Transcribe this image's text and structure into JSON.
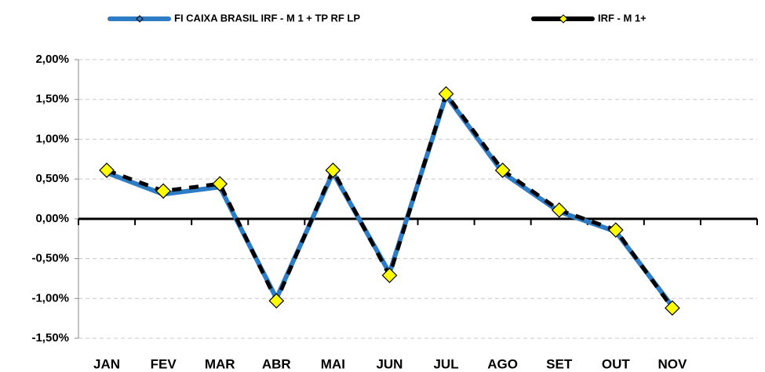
{
  "chart_data": {
    "type": "line",
    "categories": [
      "JAN",
      "FEV",
      "MAR",
      "ABR",
      "MAI",
      "JUN",
      "JUL",
      "AGO",
      "SET",
      "OUT",
      "NOV",
      null
    ],
    "series": [
      {
        "name": "FI CAIXA BRASIL IRF - M 1 + TP RF LP",
        "color": "#2e7cc4",
        "values": [
          0.58,
          0.31,
          0.4,
          -1.0,
          0.58,
          -0.68,
          1.55,
          0.58,
          0.09,
          -0.16,
          -1.1,
          null
        ]
      },
      {
        "name": "IRF - M 1+",
        "color": "#000000",
        "marker_color": "#ffff00",
        "values": [
          0.61,
          0.35,
          0.44,
          -1.03,
          0.61,
          -0.71,
          1.57,
          0.61,
          0.11,
          -0.14,
          -1.12,
          null
        ]
      }
    ],
    "ylim": [
      -1.5,
      2.0
    ],
    "yticks": [
      {
        "value": -1.5,
        "label": "-1,50%"
      },
      {
        "value": -1.0,
        "label": "-1,00%"
      },
      {
        "value": -0.5,
        "label": "-0,50%"
      },
      {
        "value": 0,
        "label": "0,00%"
      },
      {
        "value": 0.5,
        "label": "0,50%"
      },
      {
        "value": 1.0,
        "label": "1,00%"
      },
      {
        "value": 1.5,
        "label": "1,50%"
      },
      {
        "value": 2.0,
        "label": "2,00%"
      }
    ],
    "grid": true,
    "legend": "top"
  }
}
